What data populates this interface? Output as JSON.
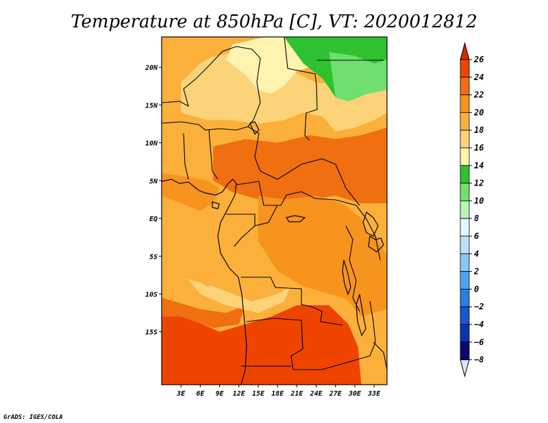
{
  "title": "Temperature at 850hPa [C], VT: 2020012812",
  "credit": "GrADS: IGES/COLA",
  "map": {
    "lon_range": [
      0,
      35
    ],
    "lat_range": [
      -22,
      24
    ],
    "lon_ticks": [
      {
        "value": 3,
        "label": "3E"
      },
      {
        "value": 6,
        "label": "6E"
      },
      {
        "value": 9,
        "label": "9E"
      },
      {
        "value": 12,
        "label": "12E"
      },
      {
        "value": 15,
        "label": "15E"
      },
      {
        "value": 18,
        "label": "18E"
      },
      {
        "value": 21,
        "label": "21E"
      },
      {
        "value": 24,
        "label": "24E"
      },
      {
        "value": 27,
        "label": "27E"
      },
      {
        "value": 30,
        "label": "30E"
      },
      {
        "value": 33,
        "label": "33E"
      }
    ],
    "lat_ticks": [
      {
        "value": 20,
        "label": "20N"
      },
      {
        "value": 15,
        "label": "15N"
      },
      {
        "value": 10,
        "label": "10N"
      },
      {
        "value": 5,
        "label": "5N"
      },
      {
        "value": 0,
        "label": "EQ"
      },
      {
        "value": -5,
        "label": "5S"
      },
      {
        "value": -10,
        "label": "10S"
      },
      {
        "value": -15,
        "label": "15S"
      }
    ]
  },
  "colorbar": {
    "levels": [
      26,
      24,
      22,
      20,
      18,
      16,
      14,
      12,
      10,
      8,
      6,
      4,
      2,
      0,
      -2,
      -4,
      -6,
      -8
    ],
    "colors": [
      "#d42a00",
      "#ee4400",
      "#f06f10",
      "#f7941d",
      "#fbb03b",
      "#fdd37a",
      "#fef4b0",
      "#2fc12f",
      "#6fe06f",
      "#b8f3b8",
      "#e4f6ff",
      "#bce0fb",
      "#87c6f5",
      "#4da3f0",
      "#2a7ee6",
      "#1856d4",
      "#0a34b0",
      "#080870",
      "#e0e0ff"
    ],
    "top_color": "#d42a00",
    "bottom_color": "#e0e0ff"
  },
  "fields": {
    "base_color": "#fbb03b",
    "regions": [
      {
        "name": "hot-south-core",
        "color": "#d42a00",
        "points": [
          [
            14,
            -18
          ],
          [
            19,
            -17
          ],
          [
            23,
            -16.5
          ],
          [
            27,
            -17
          ],
          [
            29,
            -19
          ],
          [
            30,
            -22
          ],
          [
            14,
            -22
          ]
        ]
      },
      {
        "name": "hot-south",
        "color": "#ee4400",
        "points": [
          [
            0,
            -12
          ],
          [
            5,
            -13.5
          ],
          [
            9,
            -15
          ],
          [
            13,
            -14
          ],
          [
            17,
            -13
          ],
          [
            21,
            -11.5
          ],
          [
            26,
            -11.5
          ],
          [
            29,
            -14
          ],
          [
            30.5,
            -17
          ],
          [
            31,
            -22
          ],
          [
            0,
            -22
          ]
        ]
      },
      {
        "name": "warm-southwest",
        "color": "#f06f10",
        "points": [
          [
            0,
            -10.5
          ],
          [
            6,
            -12
          ],
          [
            10,
            -12.5
          ],
          [
            13,
            -11.5
          ],
          [
            12,
            -14
          ],
          [
            8,
            -14.5
          ],
          [
            3,
            -13
          ],
          [
            0,
            -13
          ]
        ]
      },
      {
        "name": "warm-central-band",
        "color": "#ee4400",
        "points": [
          [
            10,
            8
          ],
          [
            14,
            8.5
          ],
          [
            18,
            8
          ],
          [
            22,
            9
          ],
          [
            26,
            7
          ],
          [
            30,
            8
          ],
          [
            34,
            8.5
          ],
          [
            35,
            10
          ],
          [
            35,
            5
          ],
          [
            31,
            4.5
          ],
          [
            27,
            4.5
          ],
          [
            23,
            4
          ],
          [
            19,
            3
          ],
          [
            15,
            4
          ],
          [
            11,
            5.5
          ]
        ]
      },
      {
        "name": "warm-central-band-outer",
        "color": "#f06f10",
        "points": [
          [
            8,
            9.5
          ],
          [
            13,
            10.5
          ],
          [
            18,
            10
          ],
          [
            23,
            11
          ],
          [
            27,
            10.5
          ],
          [
            31,
            11
          ],
          [
            35,
            12
          ],
          [
            35,
            2
          ],
          [
            31,
            2
          ],
          [
            27,
            3
          ],
          [
            23,
            2.5
          ],
          [
            19,
            1.5
          ],
          [
            15,
            2.5
          ],
          [
            11,
            3.5
          ],
          [
            8,
            5
          ]
        ]
      },
      {
        "name": "warm-congo",
        "color": "#f7941d",
        "points": [
          [
            15,
            3
          ],
          [
            19,
            2.5
          ],
          [
            24,
            3
          ],
          [
            28,
            2
          ],
          [
            31,
            0
          ],
          [
            33,
            -4
          ],
          [
            33,
            -9
          ],
          [
            30,
            -11
          ],
          [
            26,
            -10
          ],
          [
            22,
            -9
          ],
          [
            18,
            -7
          ],
          [
            15,
            -3
          ]
        ]
      },
      {
        "name": "warm-east",
        "color": "#f7941d",
        "points": [
          [
            29,
            -2
          ],
          [
            33,
            -2
          ],
          [
            35,
            -5
          ],
          [
            35,
            -12
          ],
          [
            31,
            -13
          ],
          [
            28,
            -10
          ]
        ]
      },
      {
        "name": "warm-west-coast",
        "color": "#f7941d",
        "points": [
          [
            0,
            6
          ],
          [
            4,
            5.5
          ],
          [
            7,
            5
          ],
          [
            9,
            4
          ],
          [
            8,
            2
          ],
          [
            6,
            1
          ],
          [
            3,
            2
          ],
          [
            0,
            3
          ]
        ]
      },
      {
        "name": "cool-sahel",
        "color": "#fdd37a",
        "points": [
          [
            3,
            14
          ],
          [
            7,
            13
          ],
          [
            11,
            13
          ],
          [
            15,
            12.5
          ],
          [
            19,
            13
          ],
          [
            22,
            14
          ],
          [
            25,
            13.5
          ],
          [
            27,
            11.5
          ],
          [
            30,
            12
          ],
          [
            33,
            13
          ],
          [
            35,
            14
          ],
          [
            35,
            18
          ],
          [
            29,
            17.5
          ],
          [
            24,
            18
          ],
          [
            19,
            20
          ],
          [
            15,
            21
          ],
          [
            11,
            22
          ],
          [
            6,
            21
          ],
          [
            3,
            19
          ]
        ]
      },
      {
        "name": "cool-sahara-core",
        "color": "#fef4b0",
        "points": [
          [
            10,
            21
          ],
          [
            13,
            19
          ],
          [
            15,
            17
          ],
          [
            17,
            16.5
          ],
          [
            19,
            17.5
          ],
          [
            21,
            19.5
          ],
          [
            23,
            20
          ],
          [
            25,
            19
          ],
          [
            27,
            17
          ],
          [
            29,
            17
          ],
          [
            30,
            19
          ],
          [
            29,
            22
          ],
          [
            26,
            24
          ],
          [
            16,
            24
          ],
          [
            11,
            23
          ]
        ]
      },
      {
        "name": "cool-northwest",
        "color": "#fbb03b",
        "points": [
          [
            0,
            24
          ],
          [
            10,
            24
          ],
          [
            9,
            22
          ],
          [
            6,
            20.5
          ],
          [
            3,
            18
          ],
          [
            1,
            16
          ],
          [
            0,
            17
          ]
        ]
      },
      {
        "name": "green-egypt",
        "color": "#2fc12f",
        "points": [
          [
            19,
            24
          ],
          [
            35,
            24
          ],
          [
            35,
            17
          ],
          [
            32,
            16.5
          ],
          [
            29,
            15.5
          ],
          [
            27,
            16
          ],
          [
            25,
            18.5
          ],
          [
            22,
            20.5
          ]
        ]
      },
      {
        "name": "green-egypt-light",
        "color": "#6fe06f",
        "points": [
          [
            26,
            22
          ],
          [
            30,
            21.5
          ],
          [
            33,
            20.5
          ],
          [
            35,
            21
          ],
          [
            35,
            17
          ],
          [
            32,
            16.5
          ],
          [
            29,
            15.5
          ],
          [
            27,
            16
          ]
        ]
      },
      {
        "name": "cool-south-angola",
        "color": "#fdd37a",
        "points": [
          [
            4,
            -8
          ],
          [
            8,
            -9
          ],
          [
            11,
            -10
          ],
          [
            14,
            -11
          ],
          [
            18,
            -10
          ],
          [
            20,
            -9
          ],
          [
            19,
            -11
          ],
          [
            15,
            -12.5
          ],
          [
            10,
            -11.5
          ],
          [
            6,
            -10
          ]
        ]
      },
      {
        "name": "warm-west-south",
        "color": "#fbb03b",
        "points": [
          [
            0,
            -2
          ],
          [
            4,
            -1
          ],
          [
            8,
            -2
          ],
          [
            10,
            -5
          ],
          [
            11,
            -8
          ],
          [
            7,
            -9
          ],
          [
            3,
            -7
          ],
          [
            0,
            -6
          ]
        ]
      }
    ]
  }
}
